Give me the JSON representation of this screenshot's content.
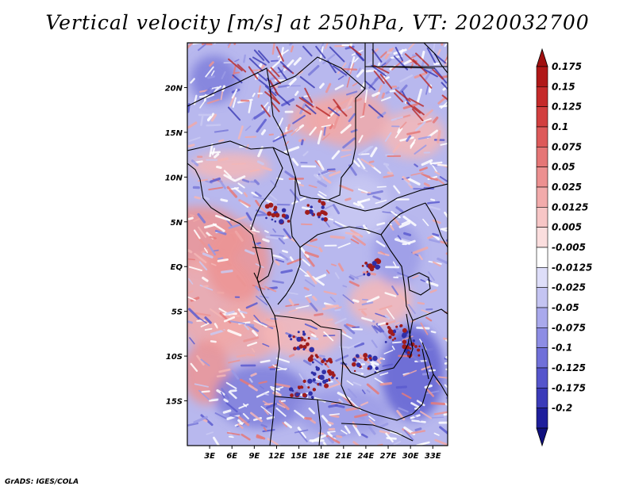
{
  "title": "Vertical velocity [m/s] at 250hPa, VT: 2020032700",
  "credit": "GrADS: IGES/COLA",
  "map": {
    "lon_range": [
      0,
      35
    ],
    "lat_range": [
      -20,
      25
    ],
    "lon_ticks": [
      {
        "value": 3,
        "label": "3E"
      },
      {
        "value": 6,
        "label": "6E"
      },
      {
        "value": 9,
        "label": "9E"
      },
      {
        "value": 12,
        "label": "12E"
      },
      {
        "value": 15,
        "label": "15E"
      },
      {
        "value": 18,
        "label": "18E"
      },
      {
        "value": 21,
        "label": "21E"
      },
      {
        "value": 24,
        "label": "24E"
      },
      {
        "value": 27,
        "label": "27E"
      },
      {
        "value": 30,
        "label": "30E"
      },
      {
        "value": 33,
        "label": "33E"
      }
    ],
    "lat_ticks": [
      {
        "value": 20,
        "label": "20N"
      },
      {
        "value": 15,
        "label": "15N"
      },
      {
        "value": 10,
        "label": "10N"
      },
      {
        "value": 5,
        "label": "5N"
      },
      {
        "value": 0,
        "label": "EQ"
      },
      {
        "value": -5,
        "label": "5S"
      },
      {
        "value": -10,
        "label": "10S"
      },
      {
        "value": -15,
        "label": "15S"
      }
    ]
  },
  "colorbar": {
    "levels": [
      {
        "label": "0.175",
        "color": "#b01818"
      },
      {
        "label": "0.15",
        "color": "#c52a2a"
      },
      {
        "label": "0.125",
        "color": "#d23f3f"
      },
      {
        "label": "0.1",
        "color": "#dd5a5a"
      },
      {
        "label": "0.075",
        "color": "#e57676"
      },
      {
        "label": "0.05",
        "color": "#ec9090"
      },
      {
        "label": "0.025",
        "color": "#f2abab"
      },
      {
        "label": "0.0125",
        "color": "#f7c6c6"
      },
      {
        "label": "0.005",
        "color": "#fbdede"
      },
      {
        "label": "-0.005",
        "color": "#ffffff"
      },
      {
        "label": "-0.0125",
        "color": "#dedef9"
      },
      {
        "label": "-0.025",
        "color": "#c4c4f2"
      },
      {
        "label": "-0.05",
        "color": "#a9a9ec"
      },
      {
        "label": "-0.075",
        "color": "#8d8de4"
      },
      {
        "label": "-0.1",
        "color": "#7070d9"
      },
      {
        "label": "-0.125",
        "color": "#5555cc"
      },
      {
        "label": "-0.175",
        "color": "#3b3bb9"
      },
      {
        "label": "-0.2",
        "color": "#1e1e9c"
      }
    ],
    "top_color": "#a01010",
    "bottom_color": "#10107e"
  },
  "field_colors": {
    "base": "#b8b8ee",
    "red_regions": [
      "#ec9494",
      "#f0a9a9",
      "#e57a7a",
      "#f4b7b7"
    ],
    "blue_regions": [
      "#7a7ad9",
      "#9a9ae6",
      "#5c5ccf",
      "#c9c9f3"
    ],
    "hotspot": "#a01c1c",
    "whitespot": "#ffffff"
  }
}
